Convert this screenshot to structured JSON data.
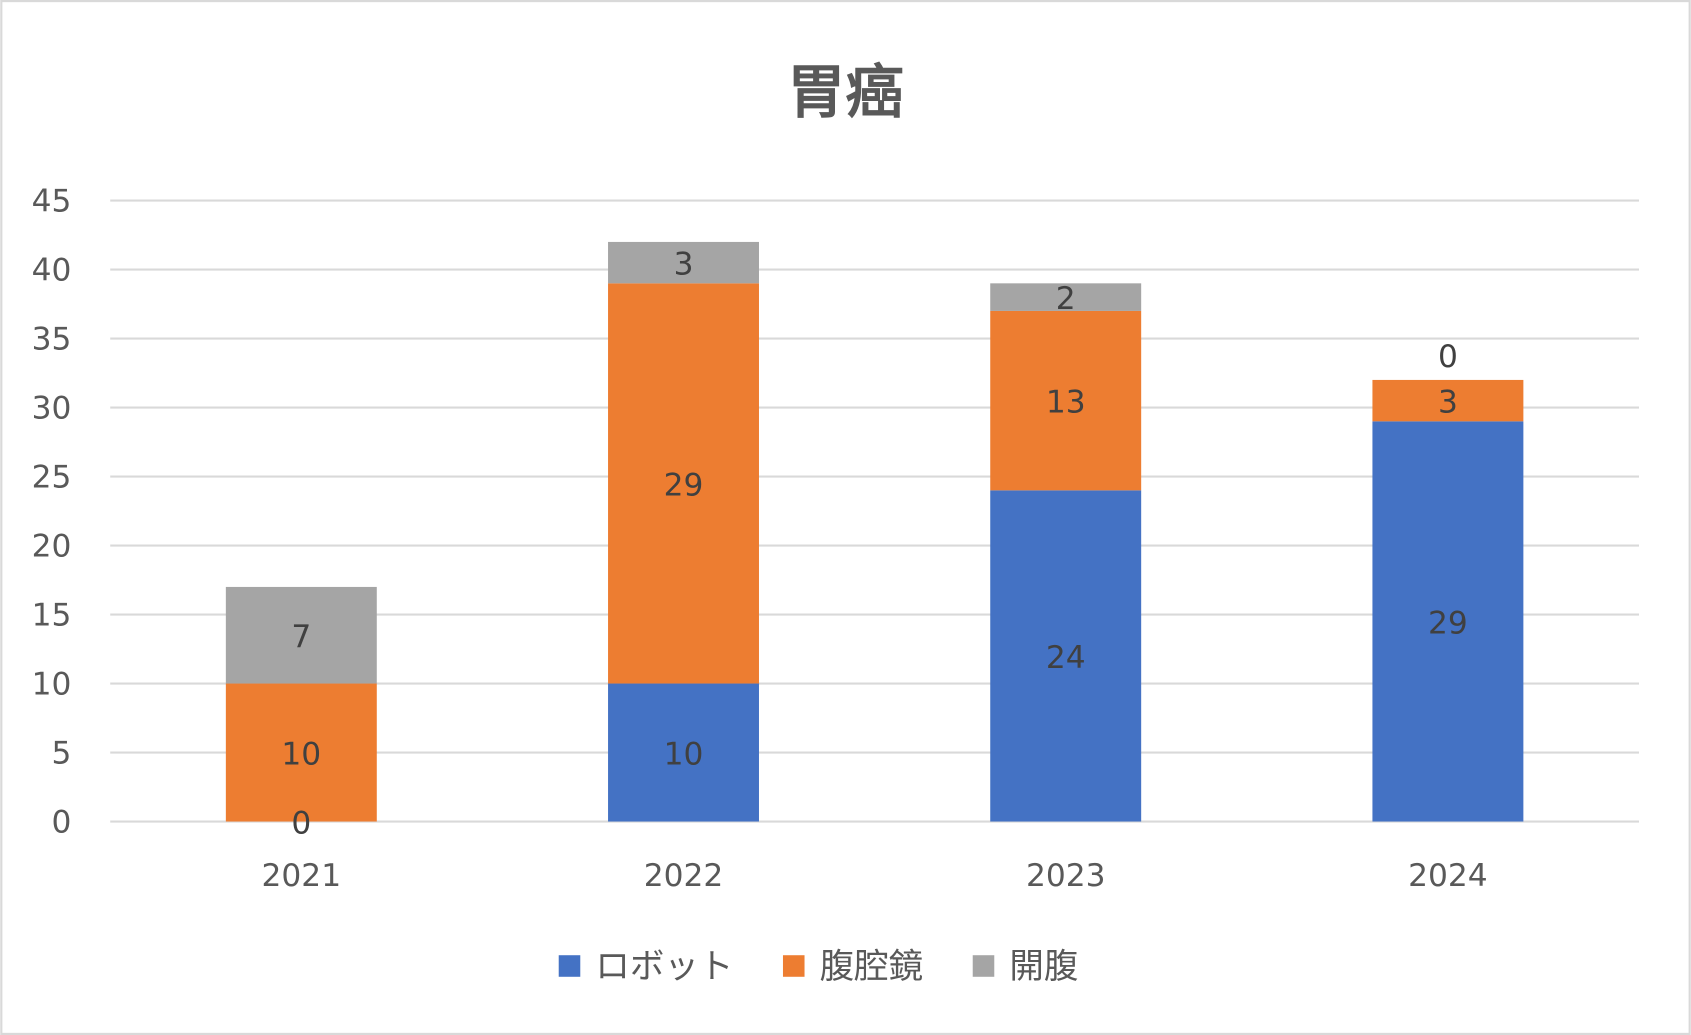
{
  "chart_data": {
    "type": "bar",
    "stacked": true,
    "title": "胃癌",
    "categories": [
      "2021",
      "2022",
      "2023",
      "2024"
    ],
    "series": [
      {
        "name": "ロボット",
        "color": "#4472C4",
        "values": [
          0,
          10,
          24,
          29
        ]
      },
      {
        "name": "腹腔鏡",
        "color": "#ED7D31",
        "values": [
          10,
          29,
          13,
          3
        ]
      },
      {
        "name": "開腹",
        "color": "#A5A5A5",
        "values": [
          7,
          3,
          2,
          0
        ]
      }
    ],
    "xlabel": "",
    "ylabel": "",
    "ylim": [
      0,
      45
    ],
    "yticks": [
      0,
      5,
      10,
      15,
      20,
      25,
      30,
      35,
      40,
      45
    ],
    "grid": true,
    "legend": "bottom",
    "data_labels": true
  }
}
